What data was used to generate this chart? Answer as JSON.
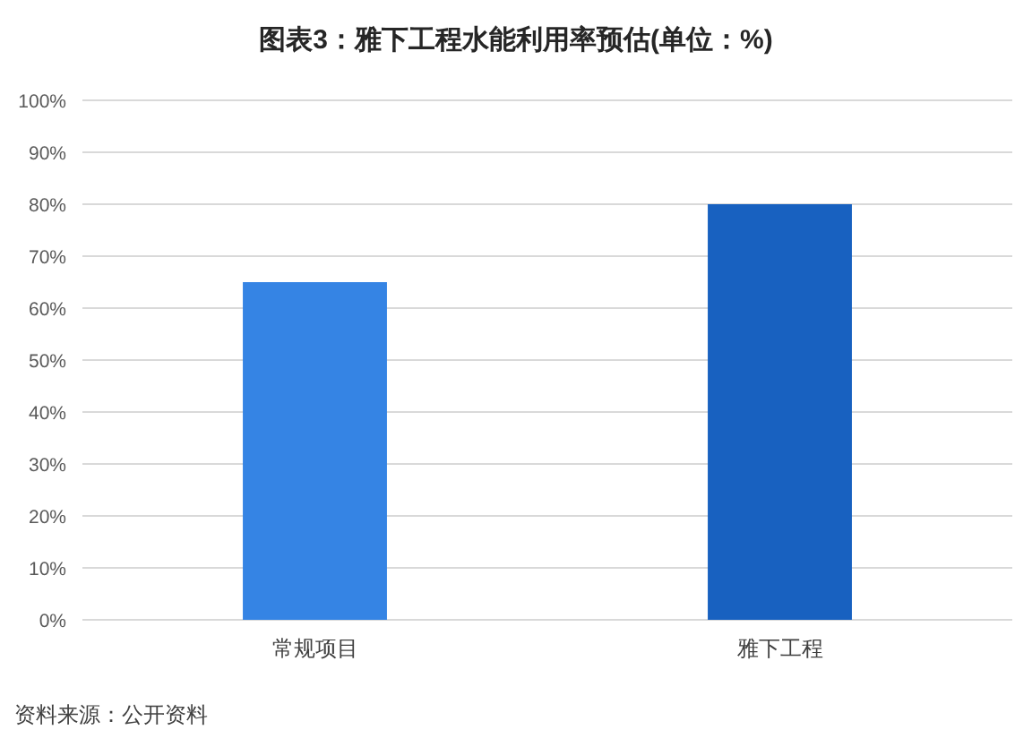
{
  "chart_data": {
    "type": "bar",
    "title": "图表3：雅下工程水能利用率预估(单位：%)",
    "categories": [
      "常规项目",
      "雅下工程"
    ],
    "values": [
      65,
      80
    ],
    "colors": [
      "#3584e4",
      "#1861c0"
    ],
    "ylim": [
      0,
      100
    ],
    "yticks": [
      {
        "value": 0,
        "label": "0%"
      },
      {
        "value": 10,
        "label": "10%"
      },
      {
        "value": 20,
        "label": "20%"
      },
      {
        "value": 30,
        "label": "30%"
      },
      {
        "value": 40,
        "label": "40%"
      },
      {
        "value": 50,
        "label": "50%"
      },
      {
        "value": 60,
        "label": "60%"
      },
      {
        "value": 70,
        "label": "70%"
      },
      {
        "value": 80,
        "label": "80%"
      },
      {
        "value": 90,
        "label": "90%"
      },
      {
        "value": 100,
        "label": "100%"
      }
    ],
    "grid": "y",
    "annotations": [
      "资料来源：公开资料"
    ]
  }
}
